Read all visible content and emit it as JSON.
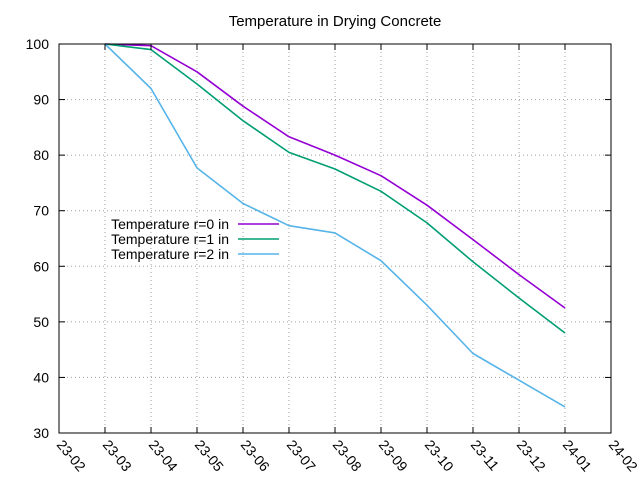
{
  "chart_data": {
    "type": "line",
    "title": "Temperature in Drying Concrete",
    "xlabel": "",
    "ylabel": "",
    "x_ticks": [
      "23-02",
      "23-03",
      "23-04",
      "23-05",
      "23-06",
      "23-07",
      "23-08",
      "23-09",
      "23-10",
      "23-11",
      "23-12",
      "24-01",
      "24-02"
    ],
    "y_ticks": [
      30,
      40,
      50,
      60,
      70,
      80,
      90,
      100
    ],
    "ylim": [
      30,
      100
    ],
    "grid": true,
    "legend_position": "center-left",
    "x": [
      "23-03",
      "23-04",
      "23-05",
      "23-06",
      "23-07",
      "23-08",
      "23-09",
      "23-10",
      "23-11",
      "23-12",
      "24-01"
    ],
    "series": [
      {
        "name": "Temperature r=0 in",
        "color": "#9400d3",
        "values": [
          100,
          99.7,
          95,
          88.8,
          83.3,
          80,
          76.3,
          71,
          64.8,
          58.5,
          52.5
        ]
      },
      {
        "name": "Temperature r=1 in",
        "color": "#009e73",
        "values": [
          100,
          99,
          92.8,
          86.2,
          80.5,
          77.5,
          73.5,
          67.8,
          60.8,
          54.3,
          48
        ]
      },
      {
        "name": "Temperature r=2 in",
        "color": "#56b4e9",
        "values": [
          100,
          92,
          77.7,
          71.3,
          67.3,
          66,
          61,
          53,
          44.3,
          39.5,
          34.7
        ]
      }
    ]
  }
}
